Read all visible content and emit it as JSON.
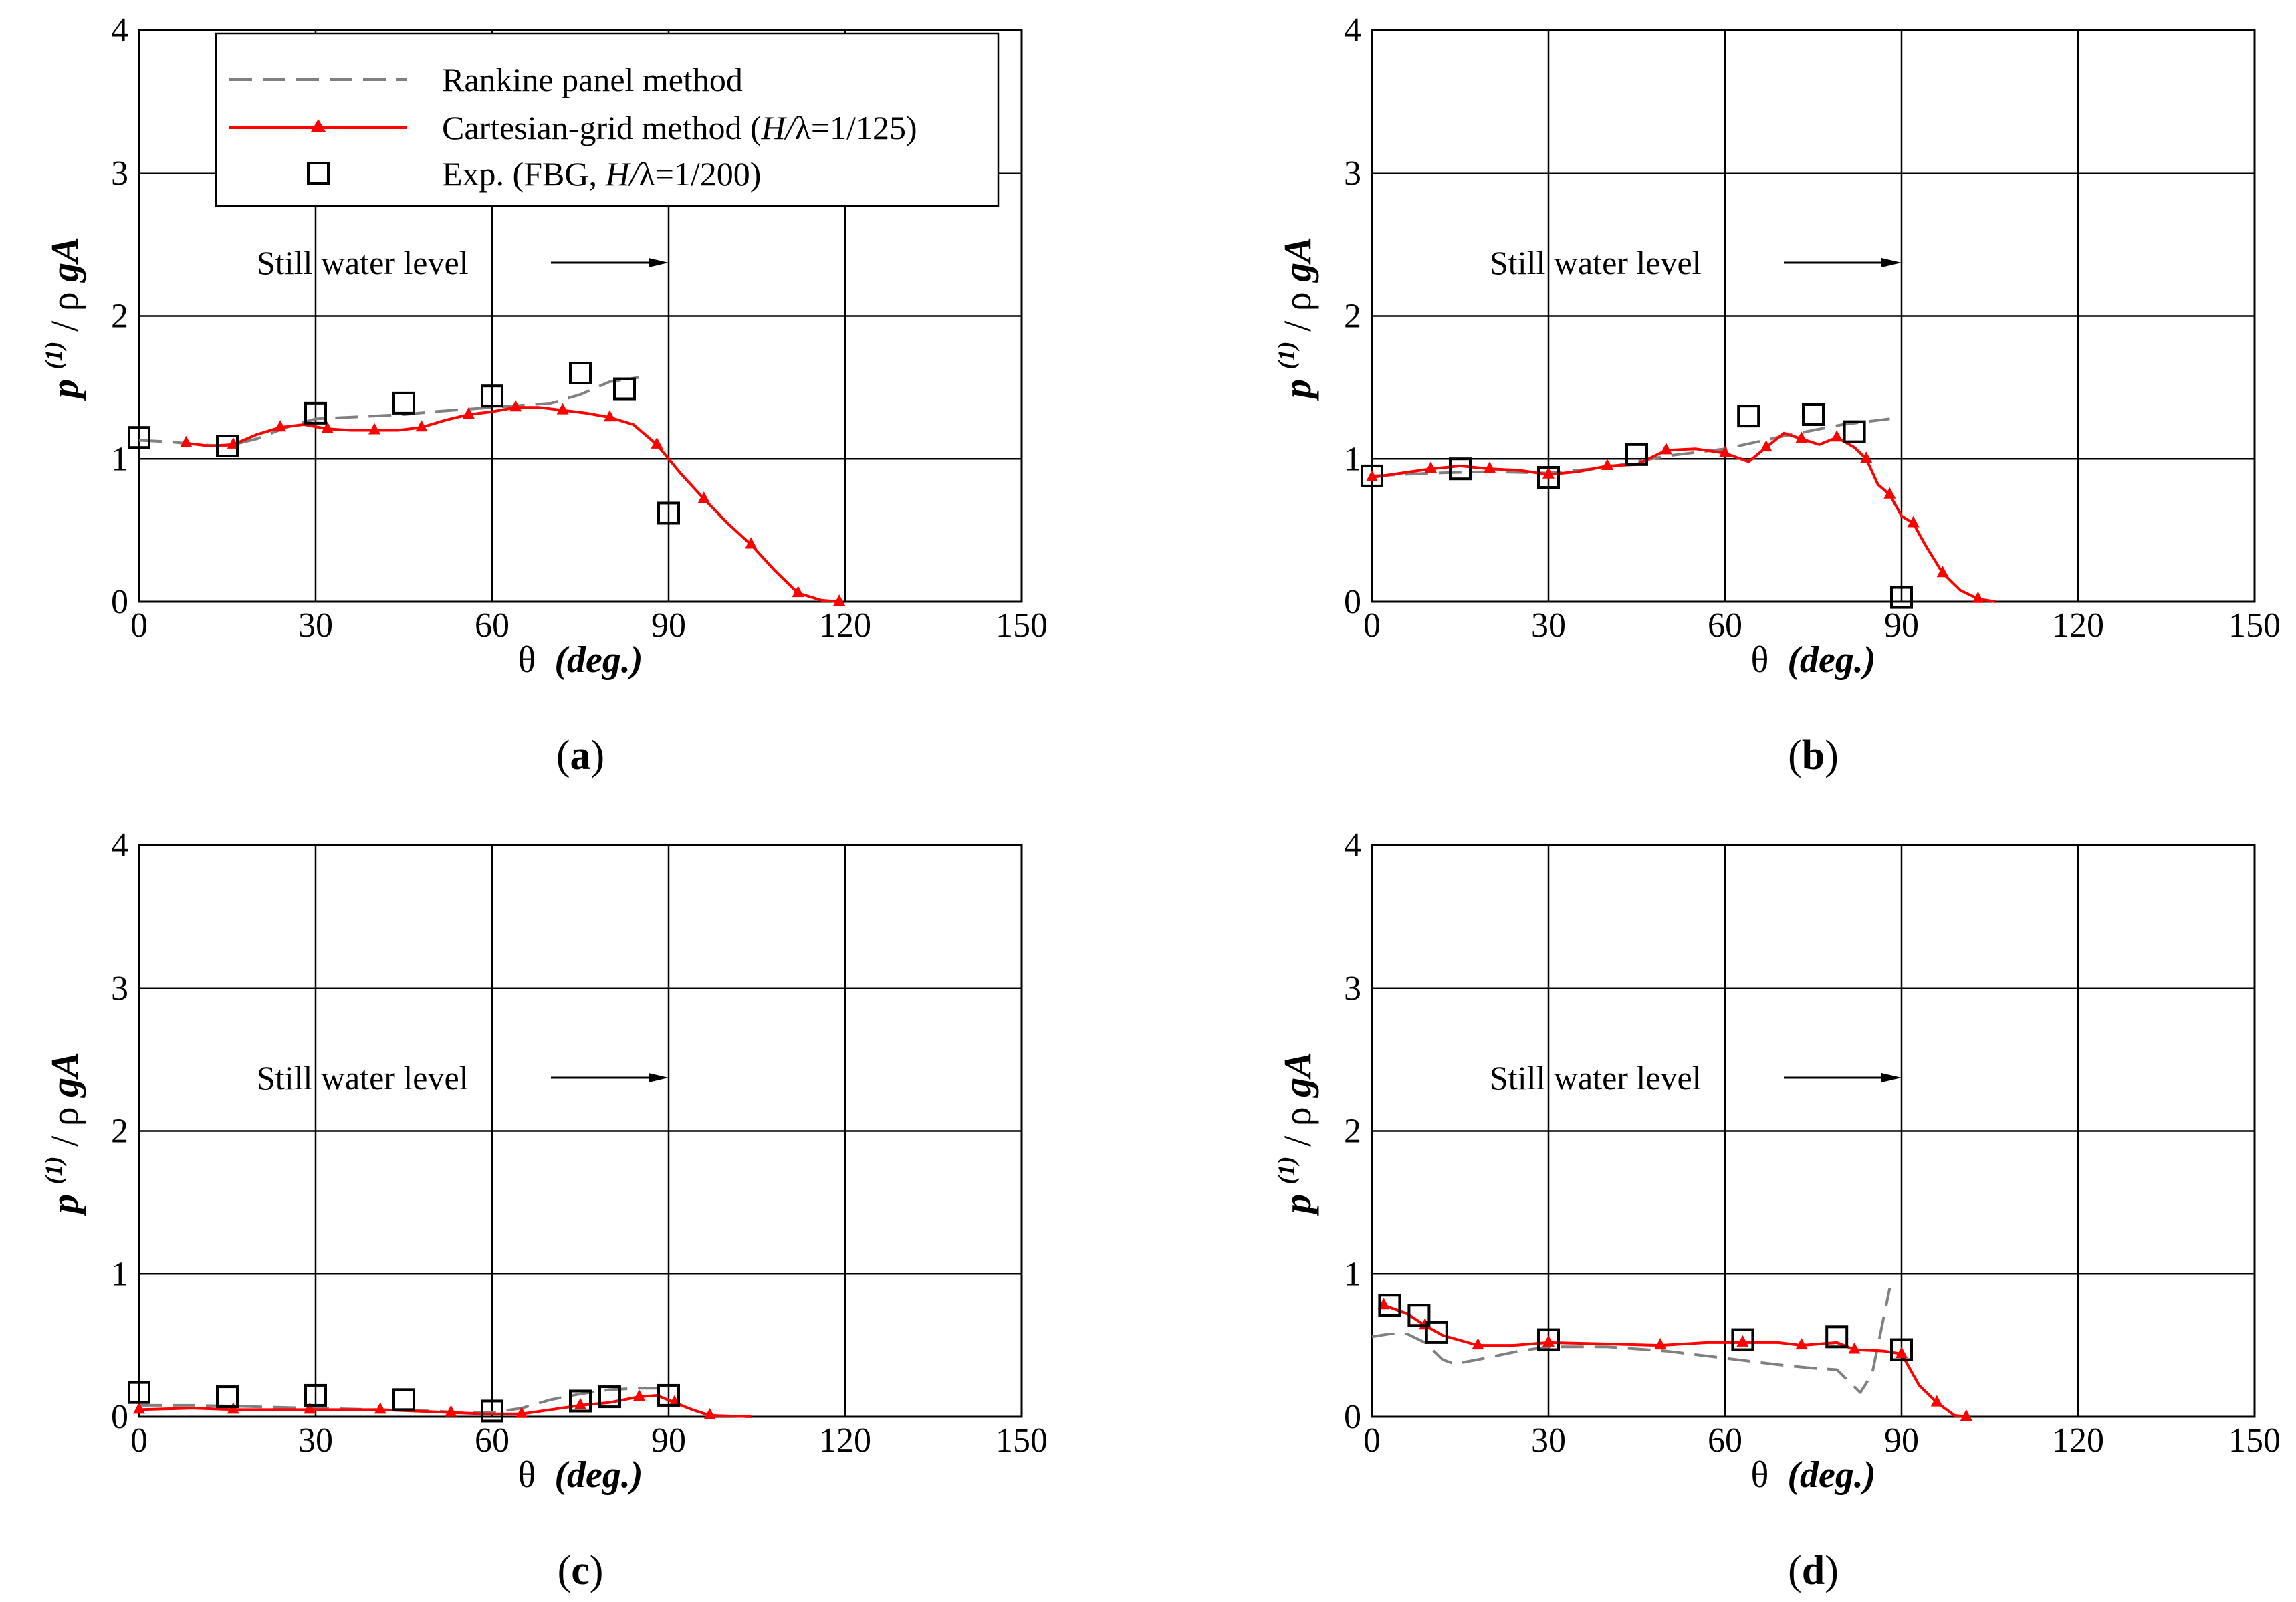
{
  "legend": {
    "rankine_label": "Rankine panel method",
    "cartesian_label_prefix": "Cartesian-grid method (",
    "cartesian_label_italic": "H/",
    "cartesian_label_suffix": "λ=1/125)",
    "exp_label_prefix": "Exp. (FBG, ",
    "exp_label_italic": "H/",
    "exp_label_suffix": "λ=1/200)"
  },
  "colors": {
    "rankine": "#808080",
    "cartesian": "#ff0000",
    "experiment": "#000000",
    "grid": "#000000"
  },
  "chart_data": [
    {
      "type": "line",
      "panel_label": "(a)",
      "panel_letter": "a",
      "xlabel_symbol": "θ",
      "xlabel_unit": "(deg.)",
      "ylabel_p": "p",
      "ylabel_sup": "(1)",
      "ylabel_rest": " / ρ",
      "ylabel_bold": "gA",
      "xlim": [
        0,
        150
      ],
      "ylim": [
        0,
        4
      ],
      "xticks": [
        0,
        30,
        60,
        90,
        120,
        150
      ],
      "yticks": [
        0,
        1,
        2,
        3,
        4
      ],
      "grid": true,
      "show_legend": true,
      "legend_position": "top-left",
      "annotation": {
        "text": "Still water level",
        "arrow_from_x": 70,
        "arrow_to_x": 90,
        "y": 2.35
      },
      "series": [
        {
          "name": "Rankine panel method",
          "style": "dashed",
          "x": [
            0,
            5,
            10,
            15,
            20,
            25,
            30,
            40,
            45,
            50,
            60,
            70,
            75,
            80,
            85
          ],
          "y": [
            1.13,
            1.12,
            1.1,
            1.09,
            1.14,
            1.22,
            1.28,
            1.3,
            1.31,
            1.33,
            1.36,
            1.39,
            1.45,
            1.54,
            1.57
          ]
        },
        {
          "name": "Cartesian-grid method (H/λ=1/125)",
          "style": "solid-triangle",
          "x": [
            8,
            12,
            16,
            20,
            24,
            28,
            32,
            36,
            40,
            44,
            48,
            52,
            56,
            60,
            64,
            68,
            72,
            76,
            80,
            84,
            88,
            92,
            96,
            100,
            104,
            108,
            112,
            116,
            119
          ],
          "y": [
            1.11,
            1.09,
            1.1,
            1.17,
            1.22,
            1.24,
            1.21,
            1.2,
            1.2,
            1.2,
            1.22,
            1.27,
            1.31,
            1.33,
            1.36,
            1.36,
            1.34,
            1.32,
            1.29,
            1.24,
            1.1,
            0.9,
            0.72,
            0.55,
            0.4,
            0.22,
            0.06,
            0.01,
            0.0
          ]
        },
        {
          "name": "Exp. (FBG, H/λ=1/200)",
          "style": "square",
          "x": [
            0,
            15,
            30,
            45,
            60,
            75,
            82.5,
            90
          ],
          "y": [
            1.15,
            1.09,
            1.32,
            1.39,
            1.44,
            1.6,
            1.49,
            0.62
          ]
        }
      ]
    },
    {
      "type": "line",
      "panel_label": "(b)",
      "panel_letter": "b",
      "xlabel_symbol": "θ",
      "xlabel_unit": "(deg.)",
      "ylabel_p": "p",
      "ylabel_sup": "(1)",
      "ylabel_rest": " / ρ",
      "ylabel_bold": "gA",
      "xlim": [
        0,
        150
      ],
      "ylim": [
        0,
        4
      ],
      "xticks": [
        0,
        30,
        60,
        90,
        120,
        150
      ],
      "yticks": [
        0,
        1,
        2,
        3,
        4
      ],
      "grid": true,
      "show_legend": false,
      "annotation": {
        "text": "Still water level",
        "arrow_from_x": 70,
        "arrow_to_x": 90,
        "y": 2.35
      },
      "series": [
        {
          "name": "Rankine panel method",
          "style": "dashed",
          "x": [
            0,
            10,
            20,
            30,
            40,
            50,
            60,
            70,
            80,
            88
          ],
          "y": [
            0.88,
            0.9,
            0.91,
            0.9,
            0.94,
            1.02,
            1.07,
            1.16,
            1.24,
            1.28
          ]
        },
        {
          "name": "Cartesian-grid method (H/λ=1/125)",
          "style": "solid-triangle",
          "x": [
            0,
            5,
            10,
            15,
            20,
            25,
            30,
            35,
            40,
            45,
            50,
            55,
            60,
            64,
            67,
            70,
            73,
            76,
            79,
            82,
            84,
            86,
            88,
            90,
            92,
            94,
            97,
            100,
            103,
            106
          ],
          "y": [
            0.87,
            0.9,
            0.93,
            0.95,
            0.93,
            0.92,
            0.89,
            0.91,
            0.95,
            0.96,
            1.06,
            1.07,
            1.04,
            0.98,
            1.08,
            1.18,
            1.14,
            1.1,
            1.15,
            1.08,
            1.0,
            0.82,
            0.75,
            0.6,
            0.55,
            0.4,
            0.2,
            0.08,
            0.02,
            0.0
          ]
        },
        {
          "name": "Exp. (FBG, H/λ=1/200)",
          "style": "square",
          "x": [
            0,
            15,
            30,
            45,
            64,
            75,
            82,
            90
          ],
          "y": [
            0.88,
            0.93,
            0.87,
            1.03,
            1.3,
            1.31,
            1.19,
            0.03
          ]
        }
      ]
    },
    {
      "type": "line",
      "panel_label": "(c)",
      "panel_letter": "c",
      "xlabel_symbol": "θ",
      "xlabel_unit": "(deg.)",
      "ylabel_p": "p",
      "ylabel_sup": "(1)",
      "ylabel_rest": " / ρ",
      "ylabel_bold": "gA",
      "xlim": [
        0,
        150
      ],
      "ylim": [
        0,
        4
      ],
      "xticks": [
        0,
        30,
        60,
        90,
        120,
        150
      ],
      "yticks": [
        0,
        1,
        2,
        3,
        4
      ],
      "grid": true,
      "show_legend": false,
      "annotation": {
        "text": "Still water level",
        "arrow_from_x": 70,
        "arrow_to_x": 90,
        "y": 2.35
      },
      "series": [
        {
          "name": "Rankine panel method",
          "style": "dashed",
          "x": [
            0,
            10,
            20,
            30,
            40,
            50,
            55,
            60,
            65,
            70,
            75,
            80,
            85,
            88
          ],
          "y": [
            0.08,
            0.08,
            0.07,
            0.06,
            0.05,
            0.04,
            0.03,
            0.03,
            0.06,
            0.12,
            0.16,
            0.19,
            0.2,
            0.2
          ]
        },
        {
          "name": "Cartesian-grid method (H/λ=1/125)",
          "style": "solid-triangle",
          "x": [
            0,
            9,
            16,
            23,
            29,
            35,
            41,
            47,
            53,
            59,
            65,
            70,
            75,
            80,
            85,
            88,
            91,
            94,
            97,
            104
          ],
          "y": [
            0.05,
            0.06,
            0.05,
            0.05,
            0.05,
            0.05,
            0.05,
            0.04,
            0.03,
            0.02,
            0.02,
            0.05,
            0.08,
            0.1,
            0.14,
            0.15,
            0.1,
            0.05,
            0.01,
            0.0
          ]
        },
        {
          "name": "Exp. (FBG, H/λ=1/200)",
          "style": "square",
          "x": [
            0,
            15,
            30,
            45,
            60,
            75,
            80,
            90
          ],
          "y": [
            0.17,
            0.14,
            0.15,
            0.12,
            0.04,
            0.11,
            0.14,
            0.15
          ]
        }
      ]
    },
    {
      "type": "line",
      "panel_label": "(d)",
      "panel_letter": "d",
      "xlabel_symbol": "θ",
      "xlabel_unit": "(deg.)",
      "ylabel_p": "p",
      "ylabel_sup": "(1)",
      "ylabel_rest": " / ρ",
      "ylabel_bold": "gA",
      "xlim": [
        0,
        150
      ],
      "ylim": [
        0,
        4
      ],
      "xticks": [
        0,
        30,
        60,
        90,
        120,
        150
      ],
      "yticks": [
        0,
        1,
        2,
        3,
        4
      ],
      "grid": true,
      "show_legend": false,
      "annotation": {
        "text": "Still water level",
        "arrow_from_x": 70,
        "arrow_to_x": 90,
        "y": 2.35
      },
      "series": [
        {
          "name": "Rankine panel method",
          "style": "dashed",
          "x": [
            0,
            3,
            6,
            9,
            12,
            14,
            18,
            25,
            30,
            40,
            50,
            60,
            70,
            75,
            79,
            81,
            83,
            85,
            87,
            88
          ],
          "y": [
            0.56,
            0.58,
            0.58,
            0.52,
            0.4,
            0.37,
            0.4,
            0.46,
            0.49,
            0.49,
            0.46,
            0.41,
            0.36,
            0.34,
            0.33,
            0.25,
            0.17,
            0.3,
            0.7,
            0.9
          ]
        },
        {
          "name": "Cartesian-grid method (H/λ=1/125)",
          "style": "solid-triangle",
          "x": [
            2,
            6,
            9,
            12,
            18,
            24,
            30,
            40,
            49,
            57,
            63,
            69,
            73,
            79,
            82,
            87,
            90,
            93,
            96,
            99,
            101
          ],
          "y": [
            0.78,
            0.72,
            0.64,
            0.57,
            0.5,
            0.5,
            0.52,
            0.51,
            0.5,
            0.52,
            0.52,
            0.52,
            0.5,
            0.52,
            0.47,
            0.46,
            0.44,
            0.22,
            0.1,
            0.01,
            0.0
          ]
        },
        {
          "name": "Exp. (FBG, H/λ=1/200)",
          "style": "square",
          "x": [
            3,
            8,
            11,
            30,
            63,
            79,
            90
          ],
          "y": [
            0.78,
            0.71,
            0.59,
            0.54,
            0.54,
            0.56,
            0.47
          ]
        }
      ]
    }
  ]
}
